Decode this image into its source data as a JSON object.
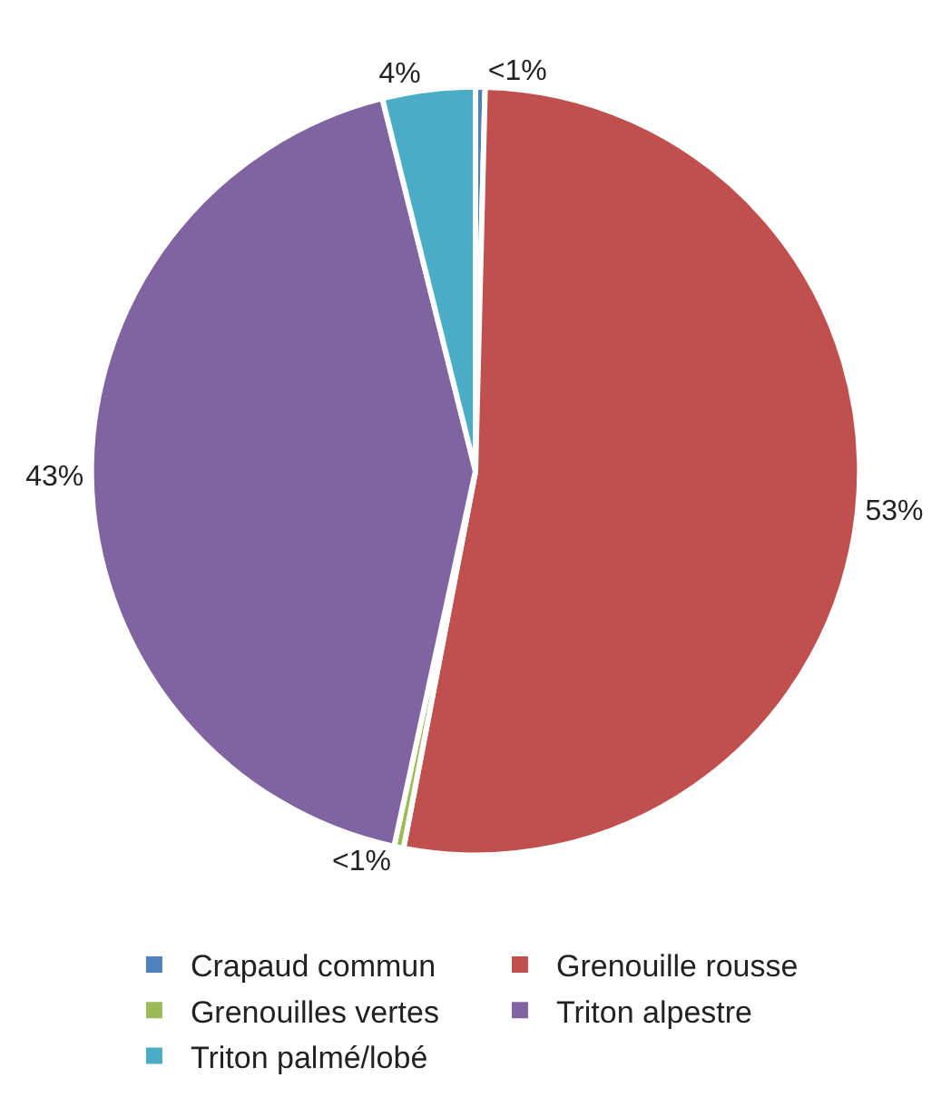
{
  "chart_data": {
    "type": "pie",
    "categories": [
      "Crapaud commun",
      "Grenouille rousse",
      "Grenouilles vertes",
      "Triton alpestre",
      "Triton palmé/lobé"
    ],
    "values": [
      0.4,
      52.6,
      0.4,
      42.7,
      3.9
    ],
    "value_labels": [
      "<1%",
      "53%",
      "<1%",
      "43%",
      "4%"
    ],
    "colors": [
      "#4f81bd",
      "#c0504d",
      "#9bbb59",
      "#8064a2",
      "#4bacc6"
    ],
    "legend": "bottom"
  }
}
